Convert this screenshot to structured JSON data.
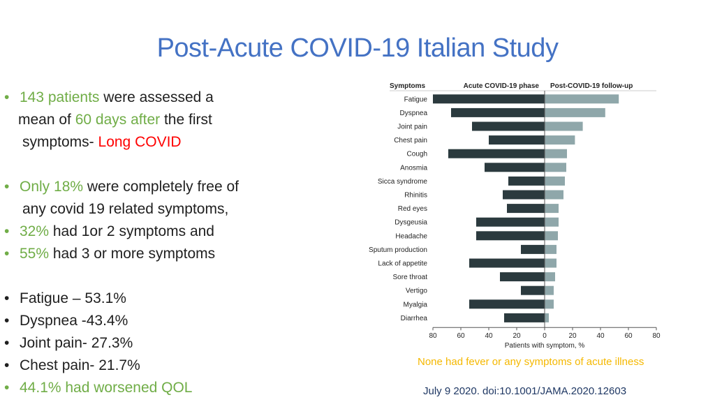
{
  "title": "Post-Acute COVID-19 Italian Study",
  "bullets": {
    "b1": {
      "hl": "143 patients",
      "t1": " were assessed a",
      "t2_pre": "mean of ",
      "t2_hl": "60 days after",
      "t2_post": " the first",
      "t3_pre": "symptoms- ",
      "t3_red": "Long COVID"
    },
    "b2": {
      "hl": "Only 18%",
      "t1": " were completely free of",
      "t2": "any covid 19 related symptoms,"
    },
    "b3": {
      "hl": "32%",
      "t1": " had 1or 2 symptoms and"
    },
    "b4": {
      "hl": "55%",
      "t1": " had 3 or more symptoms"
    },
    "b5": "Fatigue – 53.1%",
    "b6": "Dyspnea -43.4%",
    "b7": "Joint pain- 27.3%",
    "b8": "Chest pain- 21.7%",
    "b9": "44.1% had worsened QOL"
  },
  "captions": {
    "note": "None had fever or any symptoms of acute illness",
    "citation": "July 9 2020. doi:10.1001/JAMA.2020.12603"
  },
  "chart_data": {
    "type": "bar",
    "orientation": "horizontal-butterfly",
    "header_symptoms": "Symptoms",
    "header_left": "Acute COVID-19 phase",
    "header_right": "Post-COVID-19 follow-up",
    "xlabel": "Patients with symptom, %",
    "xticks": [
      "80",
      "60",
      "40",
      "20",
      "0",
      "20",
      "40",
      "60",
      "80"
    ],
    "xlim": [
      -80,
      80
    ],
    "categories": [
      "Fatigue",
      "Dyspnea",
      "Joint pain",
      "Chest pain",
      "Cough",
      "Anosmia",
      "Sicca syndrome",
      "Rhinitis",
      "Red eyes",
      "Dysgeusia",
      "Headache",
      "Sputum production",
      "Lack of appetite",
      "Sore throat",
      "Vertigo",
      "Myalgia",
      "Diarrhea"
    ],
    "series": [
      {
        "color": "#2b3a3e",
        "values": [
          80,
          67,
          52,
          40,
          69,
          43,
          26,
          30,
          27,
          49,
          49,
          17,
          54,
          32,
          17,
          54,
          29
        ]
      },
      {
        "color": "#8fa7aa",
        "values": [
          53.1,
          43.4,
          27.3,
          21.7,
          16,
          15.5,
          14.5,
          13.5,
          10,
          10,
          9.5,
          8.5,
          8.5,
          7.5,
          6.5,
          6.5,
          3
        ]
      }
    ],
    "colors": {
      "acute": "#2b3a3e",
      "post": "#8fa7aa",
      "axis": "#555555",
      "text": "#222222"
    }
  }
}
